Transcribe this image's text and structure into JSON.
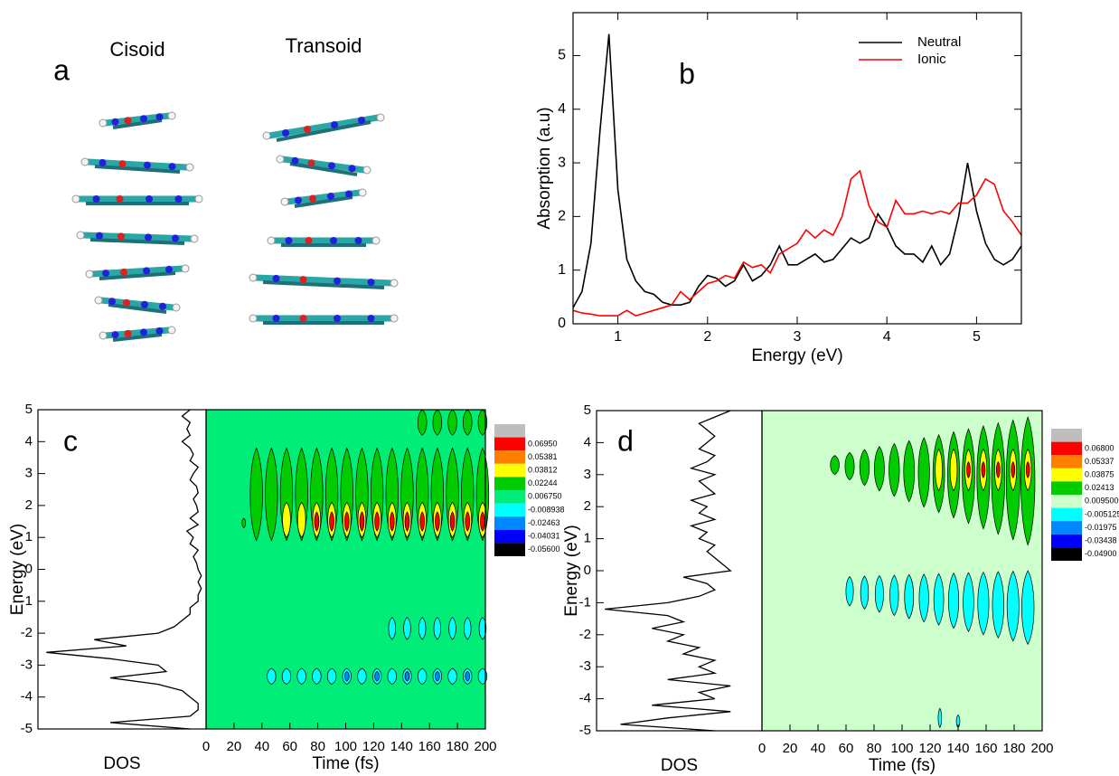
{
  "panel_a": {
    "label": "a",
    "titles": [
      "Cisoid",
      "Transoid"
    ]
  },
  "chart_data": [
    {
      "type": "line",
      "label": "b",
      "xlabel": "Energy (eV)",
      "ylabel": "Absorption (a.u)",
      "xlim": [
        0.5,
        5.5
      ],
      "xticks": [
        1,
        2,
        3,
        4,
        5
      ],
      "ylim": [
        0,
        5.8
      ],
      "yticks": [
        0,
        1,
        2,
        3,
        4,
        5
      ],
      "legend": "upper right",
      "x": [
        0.5,
        0.6,
        0.7,
        0.8,
        0.9,
        1.0,
        1.1,
        1.2,
        1.3,
        1.4,
        1.5,
        1.6,
        1.7,
        1.8,
        1.9,
        2.0,
        2.1,
        2.2,
        2.3,
        2.4,
        2.5,
        2.6,
        2.7,
        2.8,
        2.9,
        3.0,
        3.1,
        3.2,
        3.3,
        3.4,
        3.5,
        3.6,
        3.7,
        3.8,
        3.9,
        4.0,
        4.1,
        4.2,
        4.3,
        4.4,
        4.5,
        4.6,
        4.7,
        4.8,
        4.9,
        5.0,
        5.1,
        5.2,
        5.3,
        5.4,
        5.5
      ],
      "series": [
        {
          "name": "Neutral",
          "color": "#000000",
          "values": [
            0.3,
            0.6,
            1.5,
            3.6,
            5.4,
            2.5,
            1.2,
            0.8,
            0.6,
            0.55,
            0.4,
            0.35,
            0.35,
            0.4,
            0.7,
            0.9,
            0.85,
            0.7,
            0.8,
            1.1,
            0.8,
            0.9,
            1.1,
            1.45,
            1.1,
            1.1,
            1.2,
            1.3,
            1.15,
            1.2,
            1.4,
            1.6,
            1.5,
            1.6,
            2.05,
            1.8,
            1.45,
            1.3,
            1.3,
            1.15,
            1.45,
            1.1,
            1.3,
            2.0,
            3.0,
            2.1,
            1.5,
            1.2,
            1.1,
            1.2,
            1.45
          ]
        },
        {
          "name": "Ionic",
          "color": "#ff0000",
          "values": [
            0.25,
            0.2,
            0.18,
            0.15,
            0.15,
            0.15,
            0.25,
            0.15,
            0.2,
            0.25,
            0.3,
            0.35,
            0.6,
            0.45,
            0.6,
            0.75,
            0.8,
            0.9,
            0.85,
            1.15,
            1.05,
            1.1,
            0.95,
            1.3,
            1.4,
            1.5,
            1.75,
            1.6,
            1.75,
            1.65,
            2.0,
            2.7,
            2.85,
            2.2,
            1.9,
            1.8,
            2.3,
            2.05,
            2.05,
            2.1,
            2.05,
            2.1,
            2.05,
            2.25,
            2.25,
            2.4,
            2.7,
            2.6,
            2.1,
            1.9,
            1.65
          ]
        }
      ]
    },
    {
      "type": "contour",
      "label": "c",
      "ylabel": "Energy (eV)",
      "xlabel": "Time (fs)",
      "dos_label": "DOS",
      "ylim": [
        -5,
        5
      ],
      "yticks": [
        -5,
        -4,
        -3,
        -2,
        -1,
        0,
        1,
        2,
        3,
        4,
        5
      ],
      "xlim": [
        0,
        200
      ],
      "xticks": [
        0,
        20,
        40,
        60,
        80,
        100,
        120,
        140,
        160,
        180,
        200
      ],
      "background": "#00ee77",
      "dos": {
        "energy": [
          -5,
          -4.8,
          -4.6,
          -4.4,
          -4.2,
          -4,
          -3.8,
          -3.6,
          -3.4,
          -3.2,
          -3,
          -2.8,
          -2.6,
          -2.4,
          -2.2,
          -2,
          -1.8,
          -1.6,
          -1.4,
          -1.2,
          -1,
          -0.8,
          -0.6,
          -0.4,
          -0.2,
          0,
          0.2,
          0.4,
          0.6,
          0.8,
          1,
          1.2,
          1.4,
          1.6,
          1.8,
          2,
          2.2,
          2.4,
          2.6,
          2.8,
          3,
          3.2,
          3.4,
          3.6,
          3.8,
          4,
          4.2,
          4.4,
          4.6,
          4.8,
          5
        ],
        "values": [
          0.1,
          0.6,
          0.1,
          0.05,
          0.05,
          0.1,
          0.15,
          0.3,
          0.6,
          0.25,
          0.3,
          0.6,
          1.0,
          0.5,
          0.7,
          0.3,
          0.2,
          0.15,
          0.1,
          0.1,
          0.05,
          0.05,
          0.03,
          0.05,
          0.03,
          0.05,
          0.06,
          0.08,
          0.05,
          0.1,
          0.08,
          0.12,
          0.05,
          0.1,
          0.05,
          0.06,
          0.08,
          0.05,
          0.06,
          0.1,
          0.08,
          0.05,
          0.1,
          0.08,
          0.1,
          0.15,
          0.1,
          0.12,
          0.1,
          0.15,
          0.1
        ]
      },
      "colorbar": {
        "colors": [
          "#bebebe",
          "#ff0000",
          "#ff8000",
          "#ffff00",
          "#00cc00",
          "#00ee77",
          "#00ffff",
          "#0088ff",
          "#0000ff",
          "#000000"
        ],
        "levels": [
          {
            "value": 0.0695,
            "label": "0.06950"
          },
          {
            "value": 0.05381,
            "label": "0.05381"
          },
          {
            "value": 0.03812,
            "label": "0.03812"
          },
          {
            "value": 0.02244,
            "label": "0.02244"
          },
          {
            "value": 0.00675,
            "label": "0.006750"
          },
          -0.008938,
          -0.02463,
          -0.04031,
          {
            "value": -0.056,
            "label": "-0.05600"
          }
        ]
      }
    },
    {
      "type": "contour",
      "label": "d",
      "ylabel": "Energy (eV)",
      "xlabel": "Time (fs)",
      "dos_label": "DOS",
      "ylim": [
        -5,
        5
      ],
      "yticks": [
        -5,
        -4,
        -3,
        -2,
        -1,
        0,
        1,
        2,
        3,
        4,
        5
      ],
      "xlim": [
        0,
        200
      ],
      "xticks": [
        0,
        20,
        40,
        60,
        80,
        100,
        120,
        140,
        160,
        180,
        200
      ],
      "background": "#ccffcc",
      "dos": {
        "energy": [
          -5,
          -4.8,
          -4.6,
          -4.4,
          -4.2,
          -4,
          -3.8,
          -3.6,
          -3.4,
          -3.2,
          -3,
          -2.8,
          -2.6,
          -2.4,
          -2.2,
          -2,
          -1.8,
          -1.6,
          -1.4,
          -1.2,
          -1,
          -0.8,
          -0.6,
          -0.4,
          -0.2,
          0,
          0.2,
          0.4,
          0.6,
          0.8,
          1,
          1.2,
          1.4,
          1.6,
          1.8,
          2,
          2.2,
          2.4,
          2.6,
          2.8,
          3,
          3.2,
          3.4,
          3.6,
          3.8,
          4,
          4.2,
          4.4,
          4.6,
          4.8,
          5
        ],
        "values": [
          0.3,
          0.9,
          0.6,
          0.2,
          0.7,
          0.3,
          0.4,
          0.2,
          0.6,
          0.3,
          0.4,
          0.3,
          0.5,
          0.4,
          0.6,
          0.5,
          0.7,
          0.5,
          0.6,
          1.0,
          0.6,
          0.4,
          0.3,
          0.35,
          0.5,
          0.2,
          0.25,
          0.3,
          0.35,
          0.3,
          0.4,
          0.35,
          0.45,
          0.3,
          0.4,
          0.35,
          0.45,
          0.3,
          0.35,
          0.4,
          0.3,
          0.45,
          0.35,
          0.3,
          0.4,
          0.35,
          0.3,
          0.35,
          0.4,
          0.3,
          0.2
        ]
      },
      "colorbar": {
        "colors": [
          "#bebebe",
          "#ff0000",
          "#ff8000",
          "#ffff00",
          "#00cc00",
          "#ccffcc",
          "#00ffff",
          "#0088ff",
          "#0000ff",
          "#000000"
        ],
        "levels": [
          {
            "value": 0.068,
            "label": "0.06800"
          },
          0.05337,
          0.03875,
          0.02413,
          {
            "value": 0.0095,
            "label": "0.009500"
          },
          -0.005125,
          -0.01975,
          -0.03438,
          {
            "value": -0.049,
            "label": "-0.04900"
          }
        ]
      }
    }
  ]
}
